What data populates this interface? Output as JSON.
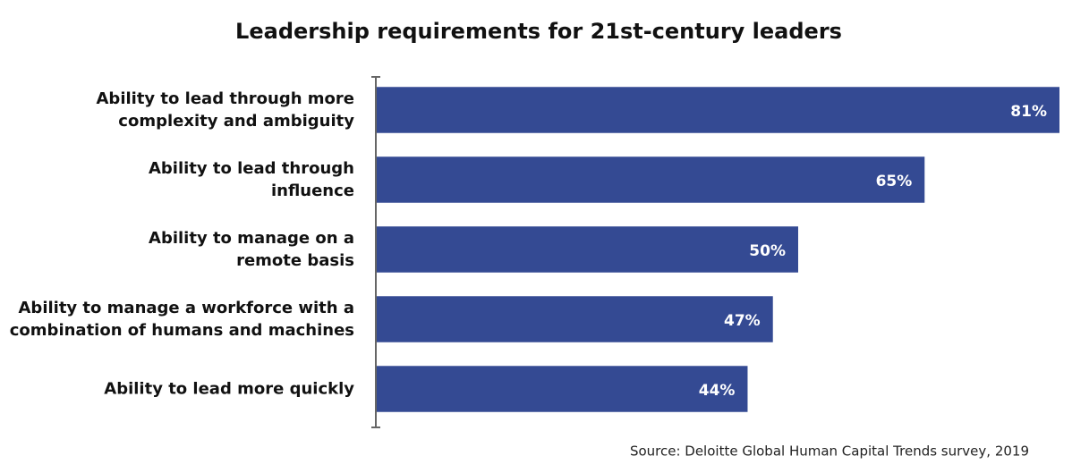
{
  "chart_data": {
    "type": "bar",
    "orientation": "horizontal",
    "title": "Leadership requirements for 21st-century leaders",
    "categories": [
      "Ability to lead through more\ncomplexity and ambiguity",
      "Ability to lead through\ninfluence",
      "Ability to manage on a\nremote basis",
      "Ability to manage a workforce with a\ncombination of humans and machines",
      "Ability to lead more quickly"
    ],
    "values": [
      81,
      65,
      50,
      47,
      44
    ],
    "value_labels": [
      "81%",
      "65%",
      "50%",
      "47%",
      "44%"
    ],
    "color": "#344a93",
    "xlim": [
      0,
      81
    ],
    "source": "Source: Deloitte Global Human Capital Trends survey, 2019"
  }
}
